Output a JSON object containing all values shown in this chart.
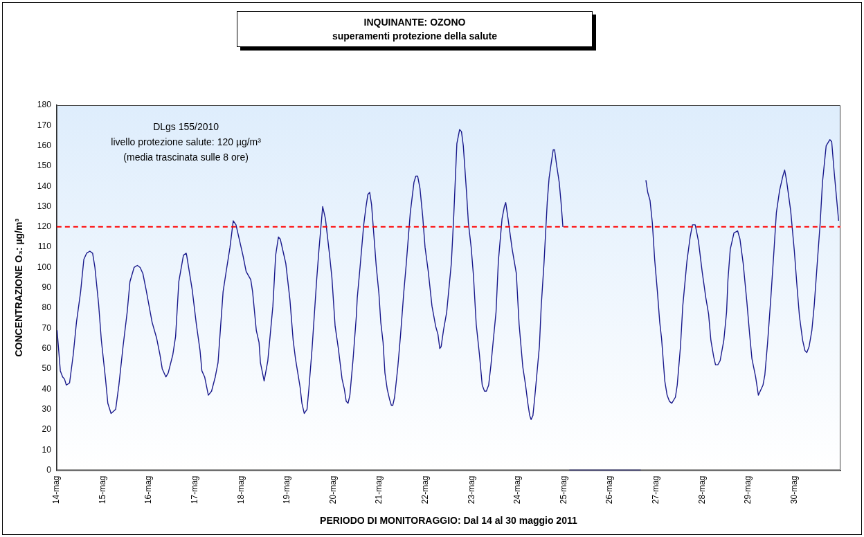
{
  "chart_data": {
    "type": "line",
    "title": "INQUINANTE: OZONO",
    "subtitle": "superamenti protezione della salute",
    "xlabel": "PERIODO DI MONITORAGGIO: Dal 14 al 30 maggio 2011",
    "ylabel": "CONCENTRAZIONE O₃: µg/m³",
    "xlim": [
      14,
      31
    ],
    "xticks": [
      {
        "value": 14,
        "label": "14-mag"
      },
      {
        "value": 15,
        "label": "15-mag"
      },
      {
        "value": 16,
        "label": "16-mag"
      },
      {
        "value": 17,
        "label": "17-mag"
      },
      {
        "value": 18,
        "label": "18-mag"
      },
      {
        "value": 19,
        "label": "19-mag"
      },
      {
        "value": 20,
        "label": "20-mag"
      },
      {
        "value": 21,
        "label": "21-mag"
      },
      {
        "value": 22,
        "label": "22-mag"
      },
      {
        "value": 23,
        "label": "23-mag"
      },
      {
        "value": 24,
        "label": "24-mag"
      },
      {
        "value": 25,
        "label": "25-mag"
      },
      {
        "value": 26,
        "label": "26-mag"
      },
      {
        "value": 27,
        "label": "27-mag"
      },
      {
        "value": 28,
        "label": "28-mag"
      },
      {
        "value": 29,
        "label": "29-mag"
      },
      {
        "value": 30,
        "label": "30-mag"
      }
    ],
    "ylim": [
      0,
      180
    ],
    "yticks": [
      0,
      10,
      20,
      30,
      40,
      50,
      60,
      70,
      80,
      90,
      100,
      110,
      120,
      130,
      140,
      150,
      160,
      170,
      180
    ],
    "grid": false,
    "marker": "none",
    "line_style": "solid",
    "series": [
      {
        "color": "#1a1a8c",
        "x": [
          14.01,
          14.08,
          14.13,
          14.17,
          14.21,
          14.28,
          14.36,
          14.43,
          14.52,
          14.59,
          14.65,
          14.72,
          14.78,
          14.83,
          14.91,
          14.97,
          15.06,
          15.11,
          15.18,
          15.28,
          15.35,
          15.44,
          15.53,
          15.59,
          15.68,
          15.75,
          15.81,
          15.87,
          15.94,
          16.07,
          16.17,
          16.24,
          16.29,
          16.37,
          16.42,
          16.52,
          16.58,
          16.65,
          16.75,
          16.81,
          16.82,
          16.94,
          17.03,
          17.11,
          17.15,
          17.21,
          17.29,
          17.36,
          17.44,
          17.5,
          17.61,
          17.67,
          17.76,
          17.83,
          17.89,
          17.94,
          18.04,
          18.11,
          18.21,
          18.25,
          18.33,
          18.39,
          18.42,
          18.5,
          18.58,
          18.69,
          18.75,
          18.81,
          18.85,
          18.91,
          18.97,
          19.06,
          19.13,
          19.18,
          19.28,
          19.32,
          19.37,
          19.43,
          19.47,
          19.54,
          19.64,
          19.69,
          19.77,
          19.83,
          19.92,
          19.97,
          20.04,
          20.11,
          20.19,
          20.24,
          20.28,
          20.32,
          20.36,
          20.43,
          20.5,
          20.52,
          20.58,
          20.66,
          20.71,
          20.75,
          20.79,
          20.83,
          20.93,
          20.99,
          21.03,
          21.08,
          21.12,
          21.17,
          21.22,
          21.26,
          21.29,
          21.33,
          21.4,
          21.46,
          21.53,
          21.58,
          21.67,
          21.75,
          21.79,
          21.83,
          21.88,
          21.94,
          21.99,
          22.06,
          22.14,
          22.22,
          22.27,
          22.31,
          22.34,
          22.39,
          22.46,
          22.56,
          22.61,
          22.68,
          22.74,
          22.78,
          22.82,
          22.89,
          22.93,
          22.99,
          23.04,
          23.1,
          23.17,
          23.23,
          23.28,
          23.32,
          23.37,
          23.42,
          23.47,
          23.53,
          23.58,
          23.66,
          23.71,
          23.74,
          23.79,
          23.88,
          23.97,
          24.03,
          24.11,
          24.17,
          24.22,
          24.26,
          24.29,
          24.33,
          24.37,
          24.47,
          24.51,
          24.57,
          24.64,
          24.68,
          24.73,
          24.77,
          24.8,
          24.84,
          24.9,
          24.94,
          24.98,
          25.04,
          25.12,
          25.5,
          26,
          26.5,
          26.67,
          26.72,
          26.78,
          26.82,
          26.87,
          26.92,
          26.97,
          27.03,
          27.08,
          27.12,
          27.19,
          27.24,
          27.29,
          27.34,
          27.42,
          27.46,
          27.53,
          27.58,
          27.67,
          27.74,
          27.79,
          27.85,
          27.92,
          28,
          28.08,
          28.14,
          28.19,
          28.25,
          28.29,
          28.34,
          28.39,
          28.47,
          28.53,
          28.56,
          28.61,
          28.69,
          28.77,
          28.82,
          28.89,
          28.97,
          29.03,
          29.08,
          29.16,
          29.22,
          29.28,
          29.32,
          29.36,
          29.42,
          29.49,
          29.56,
          29.61,
          29.68,
          29.75,
          29.79,
          29.83,
          29.92,
          30,
          30.06,
          30.11,
          30.18,
          30.23,
          30.27,
          30.32,
          30.38,
          30.43,
          30.49,
          30.56,
          30.61,
          30.69,
          30.77,
          30.81,
          30.86,
          30.92,
          30.96
        ],
        "values": [
          69,
          49,
          46,
          45,
          42,
          43,
          57,
          73,
          88,
          104,
          107,
          108,
          107,
          100,
          82,
          64,
          45,
          33,
          28,
          30,
          42,
          61,
          78,
          93,
          100,
          101,
          100,
          97,
          89,
          73,
          65,
          57,
          50,
          46,
          48,
          57,
          66,
          93,
          106,
          107,
          106,
          89,
          72,
          59,
          49,
          46,
          37,
          39,
          46,
          53,
          88,
          97,
          110,
          123,
          121,
          116,
          106,
          98,
          94,
          88,
          69,
          63,
          53,
          44,
          54,
          81,
          106,
          115,
          114,
          108,
          102,
          84,
          64,
          55,
          41,
          33,
          28,
          30,
          40,
          60,
          94,
          109,
          130,
          124,
          106,
          95,
          71,
          60,
          45,
          40,
          34,
          33,
          37,
          55,
          76,
          85,
          100,
          121,
          130,
          136,
          137,
          131,
          101,
          87,
          73,
          63,
          48,
          40,
          35,
          32,
          32,
          36,
          51,
          67,
          88,
          101,
          127,
          142,
          145,
          145,
          139,
          125,
          110,
          98,
          81,
          71,
          67,
          60,
          61,
          69,
          78,
          102,
          124,
          161,
          168,
          167,
          160,
          137,
          122,
          110,
          96,
          72,
          57,
          42,
          39,
          39,
          42,
          52,
          64,
          78,
          103,
          124,
          130,
          132,
          124,
          109,
          97,
          72,
          51,
          42,
          33,
          27,
          25,
          27,
          36,
          61,
          81,
          102,
          132,
          144,
          152,
          158,
          158,
          151,
          142,
          132,
          120,
          null,
          0,
          0,
          0,
          0,
          0,
          null,
          143,
          137,
          133,
          122,
          104,
          88,
          73,
          65,
          44,
          37,
          34,
          33,
          36,
          42,
          61,
          81,
          103,
          115,
          121,
          121,
          113,
          98,
          85,
          77,
          64,
          56,
          52,
          52,
          54,
          64,
          78,
          94,
          109,
          117,
          118,
          114,
          102,
          83,
          67,
          55,
          46,
          37,
          40,
          42,
          47,
          63,
          85,
          109,
          127,
          138,
          145,
          148,
          143,
          128,
          108,
          90,
          76,
          64,
          59,
          58,
          61,
          69,
          81,
          100,
          122,
          142,
          160,
          163,
          162,
          148,
          133,
          123
        ]
      }
    ],
    "annotations": [
      "DLgs 155/2010\nlivello protezione salute: 120 µg/m³\n(media trascinata sulle 8 ore)"
    ],
    "ref_lines": [
      {
        "axis": "y",
        "value": 120,
        "color": "#ff0000",
        "line_style": "dashed"
      }
    ]
  }
}
